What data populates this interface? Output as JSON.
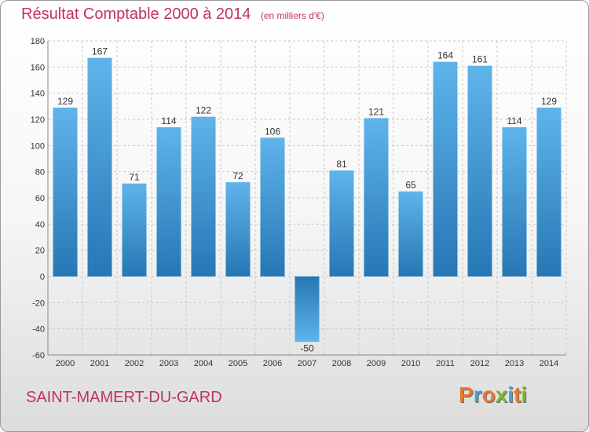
{
  "title": "Résultat Comptable 2000 à 2014",
  "unit_note": "(en milliers d'€)",
  "commune": "SAINT-MAMERT-DU-GARD",
  "brand": [
    "P",
    "r",
    "o",
    "x",
    "i",
    "t",
    "i"
  ],
  "colors": {
    "title": "#c0306a",
    "bar_top": "#5fb4ea",
    "bar_bottom": "#2677b5",
    "logo": [
      "#e8772e",
      "#3fa2d9",
      "#e8772e",
      "#7fb52e",
      "#3fa2d9",
      "#e8772e",
      "#7fb52e"
    ]
  },
  "chart_data": {
    "type": "bar",
    "categories": [
      "2000",
      "2001",
      "2002",
      "2003",
      "2004",
      "2005",
      "2006",
      "2007",
      "2008",
      "2009",
      "2010",
      "2011",
      "2012",
      "2013",
      "2014"
    ],
    "values": [
      129,
      167,
      71,
      114,
      122,
      72,
      106,
      -50,
      81,
      121,
      65,
      164,
      161,
      114,
      129
    ],
    "ylim": [
      -60,
      180
    ],
    "yticks": [
      -60,
      -40,
      -20,
      0,
      20,
      40,
      60,
      80,
      100,
      120,
      140,
      160,
      180
    ],
    "grid": true,
    "xlabel": "",
    "ylabel": ""
  }
}
